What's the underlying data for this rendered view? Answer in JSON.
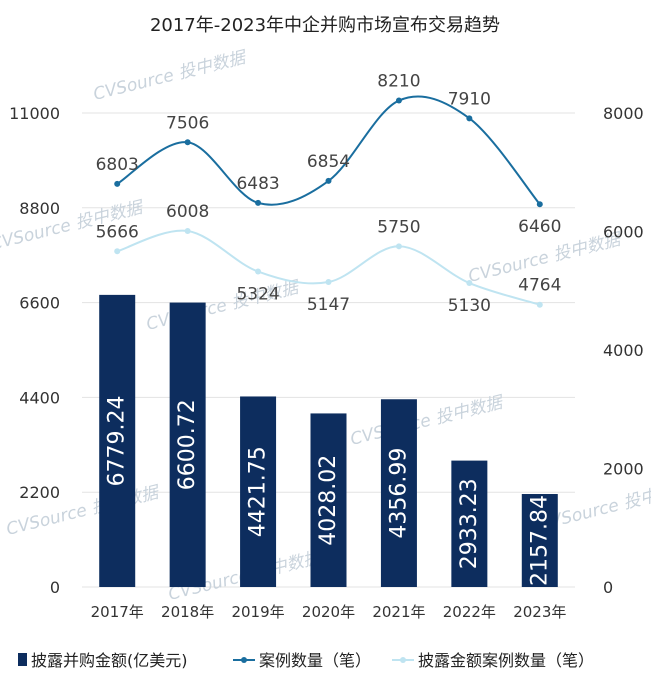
{
  "chart_data": {
    "type": "bar",
    "title": "2017年-2023年中企并购市场宣布交易趋势",
    "categories": [
      "2017年",
      "2018年",
      "2019年",
      "2020年",
      "2021年",
      "2022年",
      "2023年"
    ],
    "series": [
      {
        "name": "披露并购金额(亿美元)",
        "type": "bar",
        "axis": "left",
        "color": "#0d2d5e",
        "values": [
          6779.24,
          6600.72,
          4421.75,
          4028.02,
          4356.99,
          2933.23,
          2157.84
        ],
        "labels": [
          "6779.24",
          "6600.72",
          "4421.75",
          "4028.02",
          "4356.99",
          "2933.23",
          "2157.84"
        ]
      },
      {
        "name": "案例数量（笔）",
        "type": "line",
        "axis": "right",
        "color": "#1a6e9f",
        "values": [
          6803,
          7506,
          6483,
          6854,
          8210,
          7910,
          6460
        ],
        "labels": [
          "6803",
          "7506",
          "6483",
          "6854",
          "8210",
          "7910",
          "6460"
        ]
      },
      {
        "name": "披露金额案例数量（笔）",
        "type": "line",
        "axis": "right",
        "color": "#bfe4f1",
        "values": [
          5666,
          6008,
          5324,
          5147,
          5750,
          5130,
          4764
        ],
        "labels": [
          "5666",
          "6008",
          "5324",
          "5147",
          "5750",
          "5130",
          "4764"
        ]
      }
    ],
    "left_axis": {
      "ylim": [
        0,
        11000
      ],
      "ticks": [
        "0",
        "2200",
        "4400",
        "6600",
        "8800",
        "11000"
      ]
    },
    "right_axis": {
      "ylim": [
        0,
        8000
      ],
      "ticks": [
        "0",
        "2000",
        "4000",
        "6000",
        "8000"
      ]
    },
    "grid": true,
    "legend_position": "bottom",
    "watermark": "CVSource 投中数据"
  }
}
